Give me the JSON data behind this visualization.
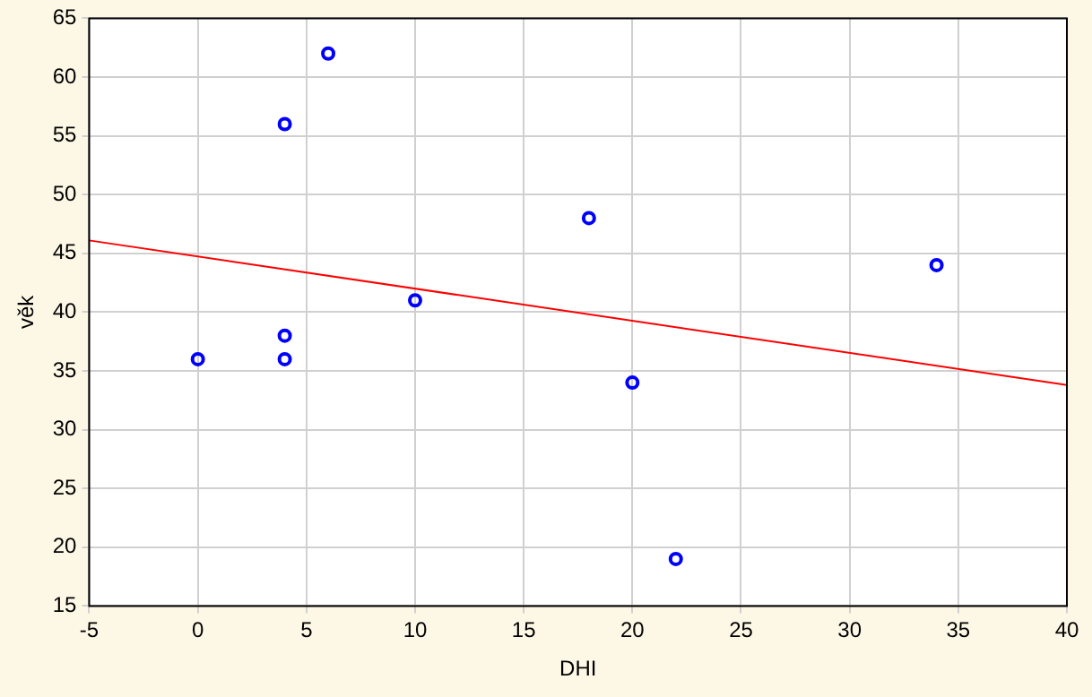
{
  "chart_data": {
    "type": "scatter",
    "xlabel": "DHI",
    "ylabel": "věk",
    "xlim": [
      -5,
      40
    ],
    "xticks": [
      -5,
      0,
      5,
      10,
      15,
      20,
      25,
      30,
      35,
      40
    ],
    "ylim": [
      15,
      65
    ],
    "yticks": [
      15,
      20,
      25,
      30,
      35,
      40,
      45,
      50,
      55,
      60,
      65
    ],
    "grid": true,
    "legend": false,
    "marker": "circle",
    "series": [
      {
        "color": "#0000ff",
        "x": [
          0,
          4,
          4,
          4,
          6,
          10,
          18,
          20,
          22,
          34
        ],
        "values": [
          36,
          56,
          38,
          36,
          62,
          41,
          48,
          34,
          19,
          44
        ]
      },
      {
        "type": "line",
        "color": "#ff0000",
        "marker": "none",
        "x": [
          -5,
          40
        ],
        "values": [
          46.1,
          33.8
        ]
      }
    ]
  }
}
